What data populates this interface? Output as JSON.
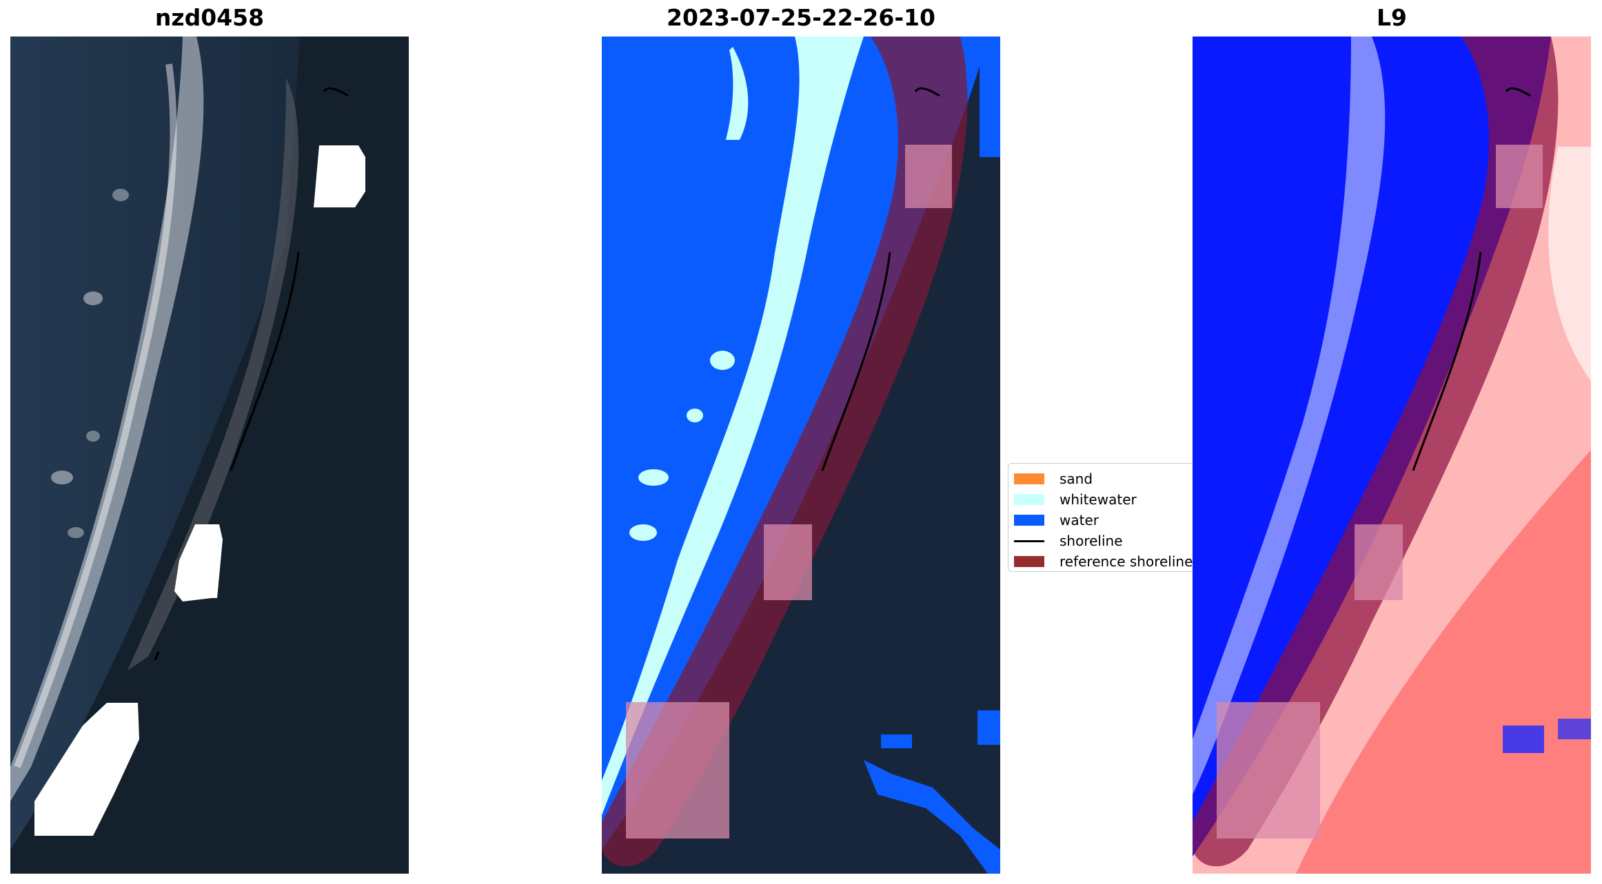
{
  "figure": {
    "panels": [
      {
        "id": "rgb",
        "title": "nzd0458"
      },
      {
        "id": "classification",
        "title": "2023-07-25-22-26-10"
      },
      {
        "id": "index",
        "title": "L9"
      }
    ]
  },
  "legend": {
    "items": [
      {
        "label": "sand",
        "kind": "patch",
        "color": "#ff8c33"
      },
      {
        "label": "whitewater",
        "kind": "patch",
        "color": "#c8fffa"
      },
      {
        "label": "water",
        "kind": "patch",
        "color": "#0a5cff"
      },
      {
        "label": "shoreline",
        "kind": "line",
        "color": "#000000"
      },
      {
        "label": "reference shoreline",
        "kind": "patch",
        "color": "#962d2d"
      }
    ]
  },
  "colors": {
    "land_dark": "#1a2a3a",
    "ocean_dark": "#1f3348",
    "whitewater": "#c8fffa",
    "water": "#0a5cff",
    "reference_band": "#7a1a3a",
    "cloud_mask": "#ffffff",
    "index_blue": "#0000ff",
    "index_red": "#ff0000"
  }
}
